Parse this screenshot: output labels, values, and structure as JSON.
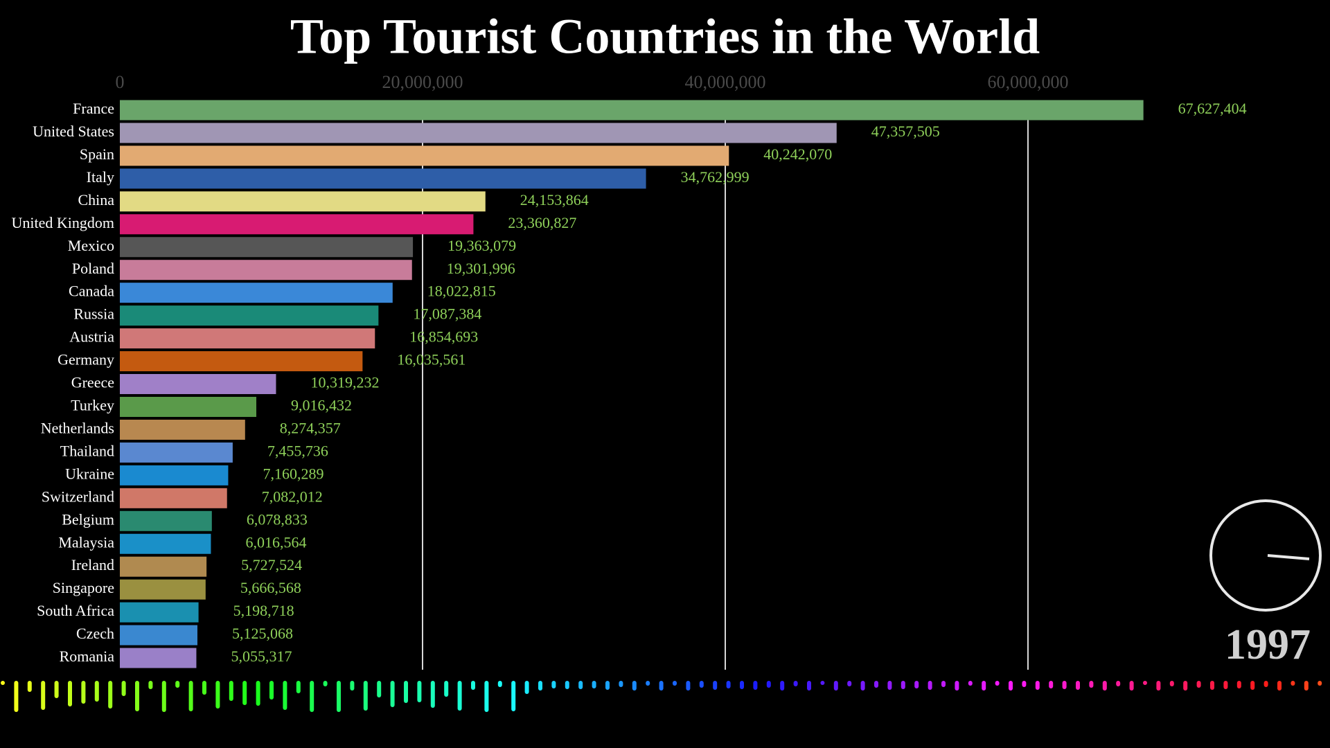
{
  "chart_data": {
    "type": "bar",
    "orientation": "horizontal",
    "title": "Top Tourist Countries in the World",
    "annotation": "1997",
    "categories": [
      "France",
      "United States",
      "Spain",
      "Italy",
      "China",
      "United Kingdom",
      "Mexico",
      "Poland",
      "Canada",
      "Russia",
      "Austria",
      "Germany",
      "Greece",
      "Turkey",
      "Netherlands",
      "Thailand",
      "Ukraine",
      "Switzerland",
      "Belgium",
      "Malaysia",
      "Ireland",
      "Singapore",
      "South Africa",
      "Czech",
      "Romania"
    ],
    "values": [
      67627404,
      47357505,
      40242070,
      34762999,
      24153864,
      23360827,
      19363079,
      19301996,
      18022815,
      17087384,
      16854693,
      16035561,
      10319232,
      9016432,
      8274357,
      7455736,
      7160289,
      7082012,
      6078833,
      6016564,
      5727524,
      5666568,
      5198718,
      5125068,
      5055317
    ],
    "value_labels": [
      "67,627,404",
      "47,357,505",
      "40,242,070",
      "34,762,999",
      "24,153,864",
      "23,360,827",
      "19,363,079",
      "19,301,996",
      "18,022,815",
      "17,087,384",
      "16,854,693",
      "16,035,561",
      "10,319,232",
      "9,016,432",
      "8,274,357",
      "7,455,736",
      "7,160,289",
      "7,082,012",
      "6,078,833",
      "6,016,564",
      "5,727,524",
      "5,666,568",
      "5,198,718",
      "5,125,068",
      "5,055,317"
    ],
    "colors": [
      "#6aa56a",
      "#a096b4",
      "#e2aa72",
      "#2e5ea8",
      "#e2da84",
      "#d81b72",
      "#565656",
      "#c87c9a",
      "#3a88d8",
      "#1a8a78",
      "#d07878",
      "#c45a10",
      "#a080c8",
      "#5a9a4a",
      "#b88850",
      "#5a88d0",
      "#1a8ad0",
      "#d07868",
      "#2a8a70",
      "#1a90c8",
      "#b08a50",
      "#9a9040",
      "#1a90b0",
      "#3a88d0",
      "#9a80c8"
    ],
    "xlim": [
      0,
      80000000
    ],
    "xticks": [
      0,
      {
        "value": 20000000,
        "label": "20,000,000"
      },
      {
        "value": 40000000,
        "label": "40,000,000"
      },
      {
        "value": 60000000,
        "label": "60,000,000"
      }
    ],
    "grid": true
  }
}
